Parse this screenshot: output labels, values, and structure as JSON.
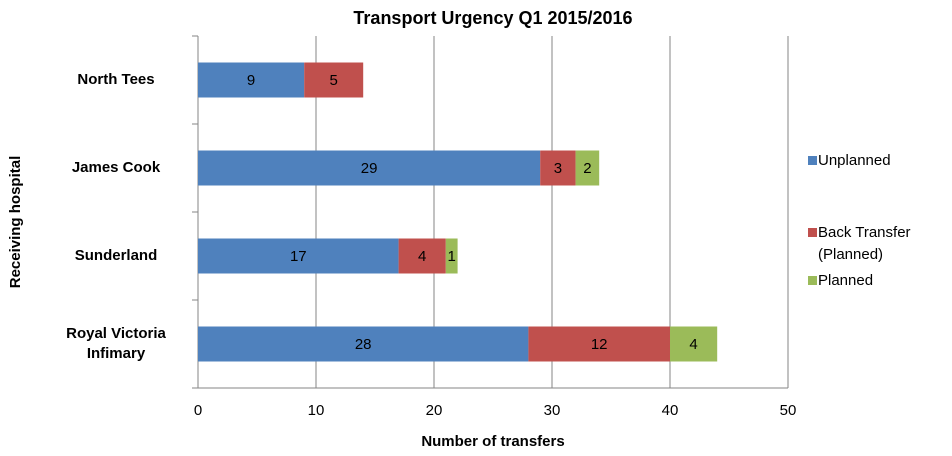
{
  "chart_data": {
    "type": "stacked-bar-horizontal",
    "title": "Transport Urgency Q1 2015/2016",
    "x_label": "Number of transfers",
    "y_label": "Receiving hospital",
    "categories": [
      "North Tees",
      "James Cook",
      "Sunderland",
      "Royal Victoria Infimary"
    ],
    "series": [
      {
        "name": "Unplanned",
        "color": "#4f81bd",
        "values": [
          9,
          29,
          17,
          28
        ]
      },
      {
        "name": "Back Transfer (Planned)",
        "color": "#c0504d",
        "values": [
          5,
          3,
          4,
          12
        ]
      },
      {
        "name": "Planned",
        "color": "#9bbb59",
        "values": [
          null,
          2,
          1,
          4
        ]
      }
    ],
    "xlim": [
      0,
      50
    ],
    "xticks": [
      0,
      10,
      20,
      30,
      40,
      50
    ],
    "grid": true,
    "legend": "right"
  }
}
